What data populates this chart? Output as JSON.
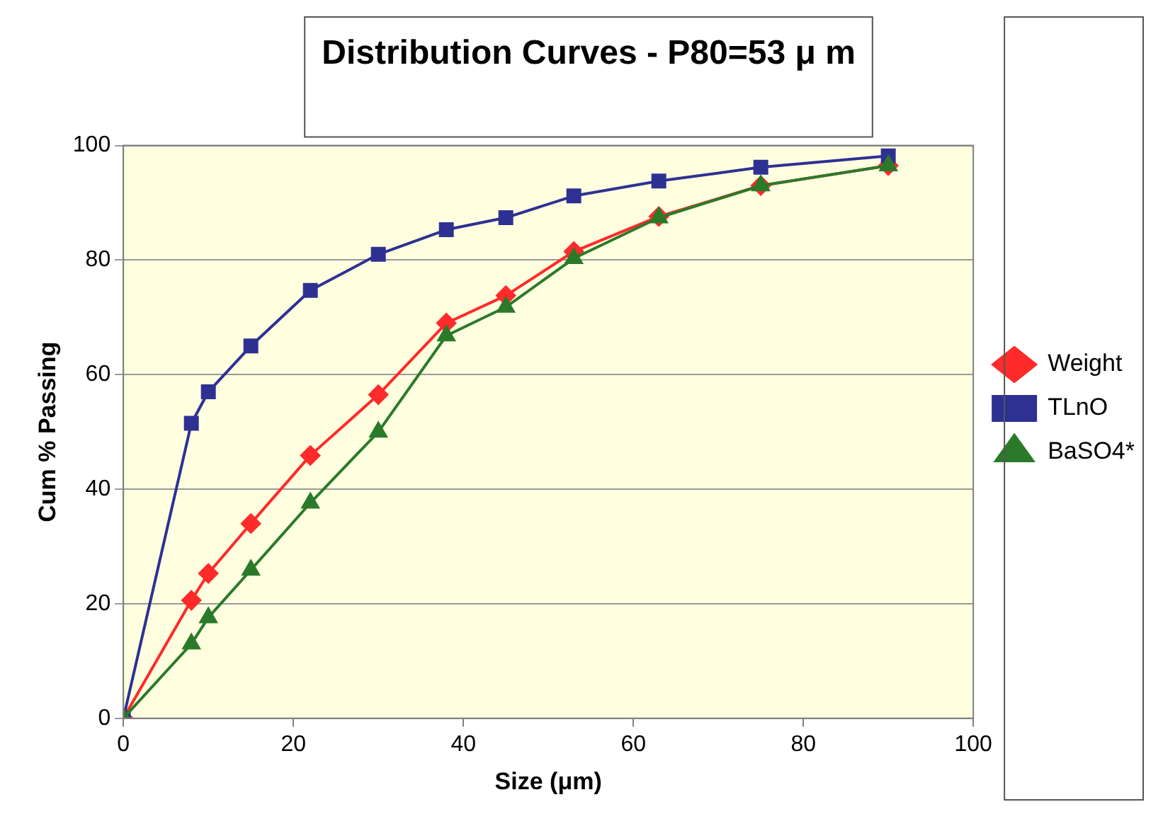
{
  "chart_data": {
    "type": "line",
    "title": "Distribution Curves - P80=53 μ m",
    "xlabel": "Size (μm)",
    "ylabel": "Cum % Passing",
    "xlim": [
      0,
      100
    ],
    "xticks": [
      0,
      20,
      40,
      60,
      80,
      100
    ],
    "ylim": [
      0,
      100
    ],
    "yticks": [
      0,
      20,
      40,
      60,
      80,
      100
    ],
    "grid": "y",
    "legend": "right",
    "line_style": "solid",
    "series": [
      {
        "name": "Weight",
        "color": "#ff2a2a",
        "marker": "diamond",
        "x": [
          0,
          8,
          10,
          15,
          22,
          30,
          38,
          45,
          53,
          63,
          75,
          90
        ],
        "values": [
          0,
          20.6,
          25.3,
          34,
          45.9,
          56.5,
          69,
          73.8,
          81.5,
          87.6,
          93,
          96.5
        ]
      },
      {
        "name": "TLnO",
        "color": "#2e3192",
        "marker": "square",
        "x": [
          0,
          8,
          10,
          15,
          22,
          30,
          38,
          45,
          53,
          63,
          75,
          90
        ],
        "values": [
          0,
          51.5,
          57,
          65,
          74.7,
          81,
          85.3,
          87.4,
          91.2,
          93.8,
          96.2,
          98.2
        ]
      },
      {
        "name": "BaSO4*",
        "color": "#2a7a2a",
        "marker": "triangle",
        "x": [
          0,
          8,
          10,
          15,
          22,
          30,
          38,
          45,
          53,
          63,
          75,
          90
        ],
        "values": [
          0,
          13,
          17.6,
          25.9,
          37.6,
          50,
          66.8,
          71.8,
          80.3,
          87.4,
          93,
          96.5
        ]
      }
    ]
  }
}
